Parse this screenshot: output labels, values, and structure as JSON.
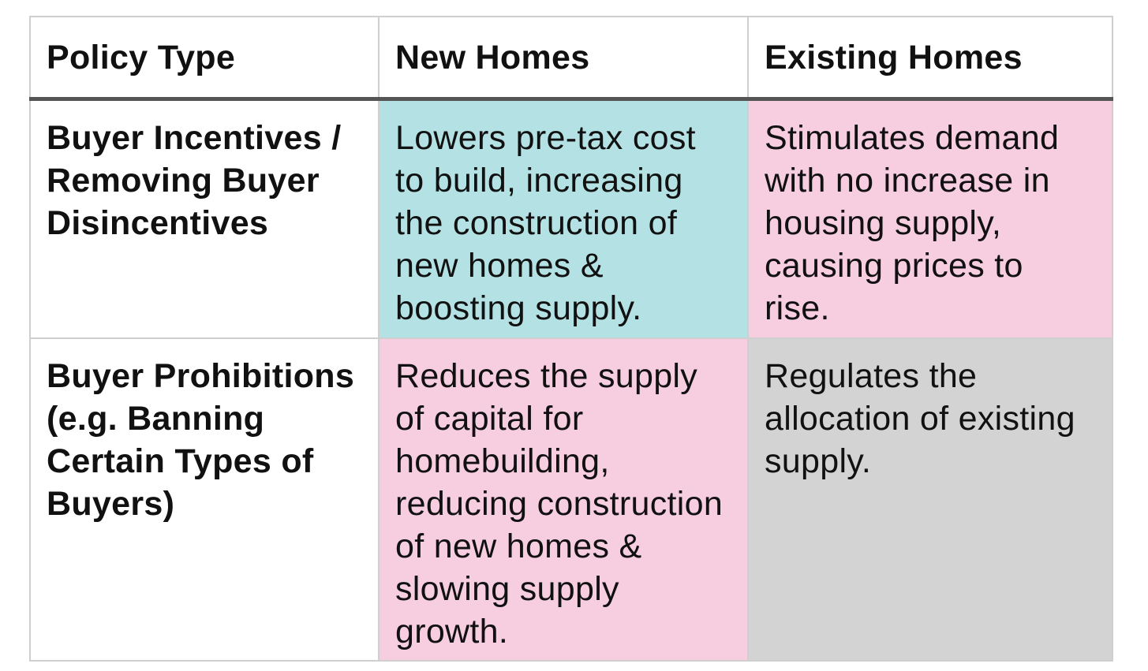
{
  "table": {
    "headers": [
      "Policy Type",
      "New Homes",
      "Existing Homes"
    ],
    "rows": [
      {
        "policy": "Buyer Incentives / Removing Buyer Disincentives",
        "new_homes": "Lowers pre-tax cost to build, increasing the construction of new homes & boosting supply.",
        "existing_homes": "Stimulates demand with no increase in housing supply, causing prices to rise.",
        "new_homes_color": "#b4e2e4",
        "existing_homes_color": "#f7cde0"
      },
      {
        "policy": "Buyer Prohibitions (e.g. Banning Certain Types of Buyers)",
        "new_homes": "Reduces the supply of capital for homebuilding, reducing construction of new homes & slowing supply growth.",
        "existing_homes": "Regulates the allocation of existing supply.",
        "new_homes_color": "#f7cde0",
        "existing_homes_color": "#d3d3d3"
      }
    ]
  }
}
